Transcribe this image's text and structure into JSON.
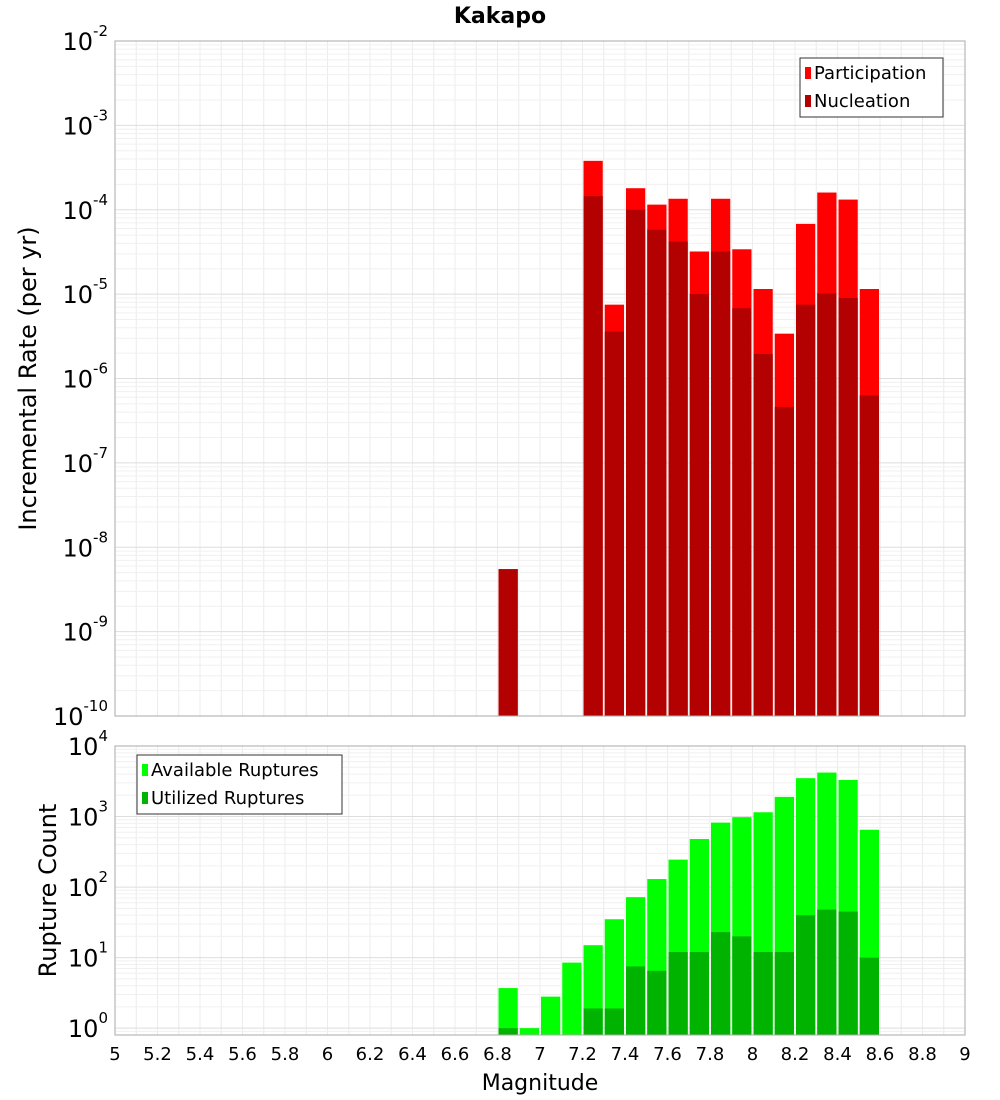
{
  "figure": {
    "title": "Kakapo",
    "xlabel": "Magnitude"
  },
  "chart_data": [
    {
      "type": "bar",
      "title": "Kakapo",
      "xlabel": "Magnitude",
      "ylabel": "Incremental Rate (per yr)",
      "yscale": "log",
      "xlim": [
        5,
        9
      ],
      "ylim": [
        1e-10,
        0.01
      ],
      "grid": true,
      "legend_position": "top-right",
      "bar_width": 0.1,
      "x_ticks": [
        "5",
        "5.2",
        "5.4",
        "5.6",
        "5.8",
        "6",
        "6.2",
        "6.4",
        "6.6",
        "6.8",
        "7",
        "7.2",
        "7.4",
        "7.6",
        "7.8",
        "8",
        "8.2",
        "8.4",
        "8.6",
        "8.8",
        "9"
      ],
      "y_ticks": [
        {
          "base": "10",
          "exp": "-2"
        },
        {
          "base": "10",
          "exp": "-3"
        },
        {
          "base": "10",
          "exp": "-4"
        },
        {
          "base": "10",
          "exp": "-5"
        },
        {
          "base": "10",
          "exp": "-6"
        },
        {
          "base": "10",
          "exp": "-7"
        },
        {
          "base": "10",
          "exp": "-8"
        },
        {
          "base": "10",
          "exp": "-9"
        },
        {
          "base": "10",
          "exp": "-10"
        }
      ],
      "x": [
        6.85,
        7.25,
        7.35,
        7.45,
        7.55,
        7.65,
        7.75,
        7.85,
        7.95,
        8.05,
        8.15,
        8.25,
        8.35,
        8.45,
        8.55
      ],
      "series": [
        {
          "name": "Participation",
          "color": "#ff0000",
          "values": [
            5.5e-09,
            0.00038,
            7.5e-06,
            0.00018,
            0.000115,
            0.000135,
            3.2e-05,
            0.000135,
            3.4e-05,
            1.15e-05,
            3.4e-06,
            6.8e-05,
            0.00016,
            0.000132,
            1.15e-05
          ]
        },
        {
          "name": "Nucleation",
          "color": "#b30000",
          "values": [
            5.5e-09,
            0.000145,
            3.6e-06,
            0.0001,
            5.8e-05,
            4.2e-05,
            1e-05,
            3.2e-05,
            6.8e-06,
            1.95e-06,
            4.6e-07,
            7.5e-06,
            1.02e-05,
            9e-06,
            6.3e-07
          ]
        }
      ]
    },
    {
      "type": "bar",
      "title": "",
      "xlabel": "Magnitude",
      "ylabel": "Rupture Count",
      "yscale": "log",
      "xlim": [
        5,
        9
      ],
      "ylim": [
        0.8,
        10000
      ],
      "grid": true,
      "legend_position": "top-left",
      "bar_width": 0.1,
      "x_ticks": [
        "5",
        "5.2",
        "5.4",
        "5.6",
        "5.8",
        "6",
        "6.2",
        "6.4",
        "6.6",
        "6.8",
        "7",
        "7.2",
        "7.4",
        "7.6",
        "7.8",
        "8",
        "8.2",
        "8.4",
        "8.6",
        "8.8",
        "9"
      ],
      "y_ticks": [
        {
          "base": "10",
          "exp": "4"
        },
        {
          "base": "10",
          "exp": "3"
        },
        {
          "base": "10",
          "exp": "2"
        },
        {
          "base": "10",
          "exp": "1"
        },
        {
          "base": "10",
          "exp": "0"
        }
      ],
      "x": [
        6.85,
        6.95,
        7.05,
        7.15,
        7.25,
        7.35,
        7.45,
        7.55,
        7.65,
        7.75,
        7.85,
        7.95,
        8.05,
        8.15,
        8.25,
        8.35,
        8.45,
        8.55
      ],
      "series": [
        {
          "name": "Available Ruptures",
          "color": "#00ff00",
          "values": [
            3.7,
            1,
            2.8,
            8.5,
            15,
            35,
            72,
            130,
            245,
            480,
            820,
            980,
            1150,
            1900,
            3500,
            4200,
            3300,
            650
          ]
        },
        {
          "name": "Utilized Ruptures",
          "color": "#00b300",
          "values": [
            1,
            0,
            0,
            0,
            1.9,
            1.9,
            7.5,
            6.5,
            12,
            12,
            23,
            20,
            12,
            12,
            40,
            48,
            45,
            10
          ]
        }
      ]
    }
  ]
}
